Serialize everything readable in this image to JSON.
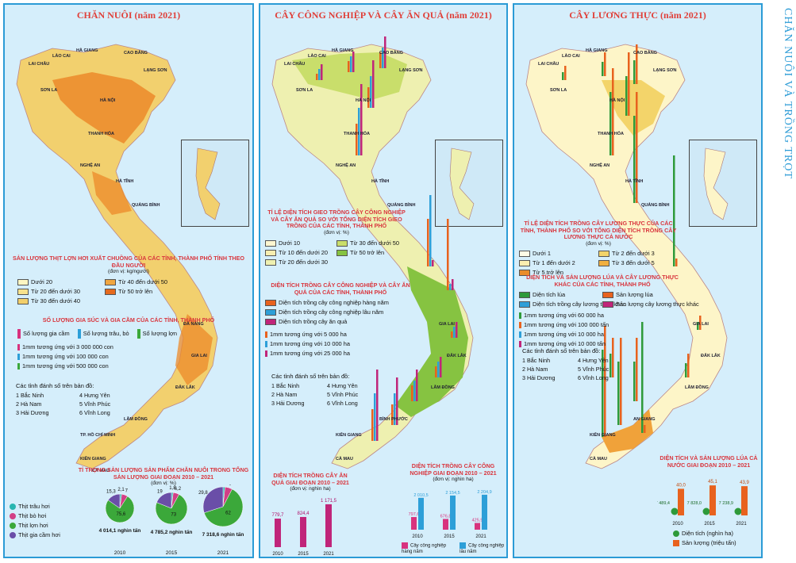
{
  "side_title": "CHĂN NUÔI VÀ TRỒNG TRỌT",
  "panels": {
    "livestock": {
      "title": "CHĂN NUÔI (năm 2021)",
      "legend1_title": "SẢN LƯỢNG THỊT LỢN HƠI XUẤT CHUỒNG CỦA CÁC TỈNH, THÀNH PHỐ TÍNH THEO ĐẦU NGƯỜI",
      "legend1_unit": "(đơn vị: kg/người)",
      "legend1_items": [
        "Dưới 20",
        "Từ 40 đến dưới 50",
        "Từ 20 đến dưới 30",
        "Từ 50 trở lên",
        "Từ 30 đến dưới 40"
      ],
      "legend2_title": "SỐ LƯỢNG GIA SÚC VÀ GIA CẦM CỦA CÁC TỈNH, THÀNH PHỐ",
      "legend2_items": [
        "Số lượng gia cầm",
        "Số lượng trâu, bò",
        "Số lượng lợn"
      ],
      "legend2_scale": [
        "1mm tương ứng với 3 000 000 con",
        "1mm tương ứng với 100 000 con",
        "1mm tương ứng với 500 000 con"
      ],
      "numbered_title": "Các tỉnh đánh số trên bản đồ:",
      "numbered": [
        "1 Bắc Ninh",
        "4 Hưng Yên",
        "2 Hà Nam",
        "5 Vĩnh Phúc",
        "3 Hải Dương",
        "6 Vĩnh Long"
      ],
      "pie_title": "TỈ TRỌNG SẢN LƯỢNG SẢN PHẨM CHĂN NUÔI TRONG TỔNG SẢN LƯỢNG GIAI ĐOẠN 2010 – 2021",
      "pie_unit": "(đơn vị: %)",
      "pie_legend": [
        "Thịt trâu hơi",
        "Thịt bò hơi",
        "Thịt lợn hơi",
        "Thịt gia cầm hơi"
      ],
      "pie_totals": [
        "4 014,1 nghìn tấn",
        "4 785,2 nghìn tấn",
        "7 318,6 nghìn tấn"
      ],
      "pie_years": [
        "2010",
        "2015",
        "2021"
      ]
    },
    "industrial": {
      "title": "CÂY CÔNG NGHIỆP VÀ CÂY ĂN QUẢ (năm 2021)",
      "legend1_title": "TỈ LỆ DIỆN TÍCH GIEO TRỒNG CÂY CÔNG NGHIỆP VÀ CÂY ĂN QUẢ SO VỚI TỔNG DIỆN TÍCH GIEO TRỒNG CỦA CÁC TỈNH, THÀNH PHỐ",
      "legend1_unit": "(đơn vị: %)",
      "legend1_items": [
        "Dưới 10",
        "Từ 30 đến dưới 50",
        "Từ 10 đến dưới 20",
        "Từ 50 trở lên",
        "Từ 20 đến dưới 30"
      ],
      "legend2_title": "DIỆN TÍCH TRỒNG CÂY CÔNG NGHIỆP VÀ CÂY ĂN QUẢ CỦA CÁC TỈNH, THÀNH PHỐ",
      "legend2_items": [
        "Diện tích trồng cây công nghiệp hàng năm",
        "Diện tích trồng cây công nghiệp lâu năm",
        "Diện tích trồng cây ăn quả"
      ],
      "legend2_scale": [
        "1mm tương ứng với 5 000 ha",
        "1mm tương ứng với 10 000 ha",
        "1mm tương ứng với 25 000 ha"
      ],
      "numbered_title": "Các tỉnh đánh số trên bản đồ:",
      "numbered": [
        "1 Bắc Ninh",
        "4 Hưng Yên",
        "2 Hà Nam",
        "5 Vĩnh Phúc",
        "3 Hải Dương",
        "6 Vĩnh Long"
      ],
      "fruit_title": "DIỆN TÍCH TRỒNG CÂY ĂN QUẢ GIAI ĐOẠN 2010 – 2021",
      "fruit_unit": "(đơn vị: nghìn ha)",
      "ind_title": "DIỆN TÍCH TRỒNG CÂY CÔNG NGHIỆP GIAI ĐOẠN 2010 – 2021",
      "ind_unit": "(đơn vị: nghìn ha)",
      "ind_legend": [
        "Cây công nghiệp hàng năm",
        "Cây công nghiệp lâu năm"
      ]
    },
    "food": {
      "title": "CÂY LƯƠNG THỰC (năm 2021)",
      "legend1_title": "TỈ LỆ DIỆN TÍCH TRỒNG CÂY LƯƠNG THỰC CỦA CÁC TỈNH, THÀNH PHỐ SO VỚI TỔNG DIỆN TÍCH TRỒNG CÂY LƯƠNG THỰC CẢ NƯỚC",
      "legend1_unit": "(đơn vị: %)",
      "legend1_items": [
        "Dưới 1",
        "Từ 2 đến dưới 3",
        "Từ 1 đến dưới 2",
        "Từ 3 đến dưới 5",
        "Từ 5 trở lên"
      ],
      "legend2_title": "DIỆN TÍCH VÀ SẢN LƯỢNG LÚA VÀ CÂY LƯƠNG THỰC KHÁC CỦA CÁC TỈNH, THÀNH PHỐ",
      "legend2_items": [
        "Diện tích lúa",
        "Sản lượng lúa",
        "Diện tích trồng cây lương thực khác",
        "Sản lượng cây lương thực khác"
      ],
      "legend2_scale": [
        "1mm tương ứng với 60 000 ha",
        "1mm tương ứng với 100 000 tấn",
        "1mm tương ứng với 10 000 ha",
        "1mm tương ứng với 10 000 tấn"
      ],
      "numbered_title": "Các tỉnh đánh số trên bản đồ:",
      "numbered": [
        "1 Bắc Ninh",
        "4 Hưng Yên",
        "2 Hà Nam",
        "5 Vĩnh Phúc",
        "3 Hải Dương",
        "6 Vĩnh Long"
      ],
      "rice_title": "DIỆN TÍCH VÀ SẢN LƯỢNG LÚA CẢ NƯỚC GIAI ĐOẠN 2010 – 2021",
      "rice_legend": [
        "Diện tích (nghìn ha)",
        "Sản lượng (triệu tấn)"
      ]
    }
  },
  "map_labels": {
    "livestock": [
      "LAI CHÂU",
      "LÀO CAI",
      "HÀ GIANG",
      "CAO BẰNG",
      "LẠNG SƠN",
      "SƠN LA",
      "HÀ NỘI",
      "THANH HÓA",
      "NGHỆ AN",
      "HÀ TĨNH",
      "QUẢNG BÌNH",
      "ĐÀ NẴNG",
      "GIA LAI",
      "ĐẮK LẮK",
      "LÂM ĐỒNG",
      "TP. HỒ CHÍ MINH",
      "KIÊN GIANG",
      "CÀ MAU"
    ],
    "industrial": [
      "LAI CHÂU",
      "LÀO CAI",
      "HÀ GIANG",
      "CAO BẰNG",
      "LẠNG SƠN",
      "SƠN LA",
      "HÀ NỘI",
      "THANH HÓA",
      "NGHỆ AN",
      "HÀ TĨNH",
      "QUẢNG BÌNH",
      "GIA LAI",
      "ĐẮK LẮK",
      "LÂM ĐỒNG",
      "BÌNH PHƯỚC",
      "KIÊN GIANG",
      "CÀ MAU"
    ],
    "food": [
      "LAI CHÂU",
      "LÀO CAI",
      "HÀ GIANG",
      "CAO BẰNG",
      "LẠNG SƠN",
      "SƠN LA",
      "HÀ NỘI",
      "THANH HÓA",
      "NGHỆ AN",
      "HÀ TĨNH",
      "QUẢNG BÌNH",
      "GIA LAI",
      "ĐẮK LẮK",
      "LÂM ĐỒNG",
      "AN GIANG",
      "KIÊN GIANG",
      "CÀ MAU"
    ]
  },
  "chart_data": [
    {
      "type": "pie",
      "title": "TỈ TRỌNG SẢN LƯỢNG SẢN PHẨM CHĂN NUÔI TRONG TỔNG SẢN LƯỢNG GIAI ĐOẠN 2010 – 2021",
      "series": [
        {
          "name": "2010",
          "values": [
            2.1,
            7.0,
            75.6,
            15.3
          ]
        },
        {
          "name": "2015",
          "values": [
            1.8,
            6.2,
            73.0,
            19.0
          ]
        },
        {
          "name": "2021",
          "values": [
            1.6,
            6.0,
            62.0,
            29.8
          ]
        }
      ],
      "labels": [
        "Thịt trâu hơi",
        "Thịt bò hơi",
        "Thịt lợn hơi",
        "Thịt gia cầm hơi"
      ],
      "colors": [
        "#28b5b0",
        "#d23f86",
        "#3ba83a",
        "#6a4ea8"
      ]
    },
    {
      "type": "bar",
      "title": "DIỆN TÍCH TRỒNG CÂY ĂN QUẢ GIAI ĐOẠN 2010 – 2021",
      "categories": [
        "2010",
        "2015",
        "2021"
      ],
      "values": [
        779.7,
        824.4,
        1171.5
      ],
      "color": "#c0257a"
    },
    {
      "type": "bar",
      "title": "DIỆN TÍCH TRỒNG CÂY CÔNG NGHIỆP GIAI ĐOẠN 2010 – 2021",
      "categories": [
        "2010",
        "2015",
        "2021"
      ],
      "series": [
        {
          "name": "Cây công nghiệp hàng năm",
          "values": [
            797.6,
            676.8,
            425.9
          ],
          "color": "#d8327e"
        },
        {
          "name": "Cây công nghiệp lâu năm",
          "values": [
            2010.5,
            2154.5,
            2204.9
          ],
          "color": "#2d9fd8"
        }
      ]
    },
    {
      "type": "bar",
      "title": "DIỆN TÍCH VÀ SẢN LƯỢNG LÚA CẢ NƯỚC GIAI ĐOẠN 2010 – 2021",
      "categories": [
        "2010",
        "2015",
        "2021"
      ],
      "series": [
        {
          "name": "Diện tích (nghìn ha)",
          "values": [
            7489.4,
            7828.0,
            7238.9
          ],
          "color": "#2e9a3a"
        },
        {
          "name": "Sản lượng (triệu tấn)",
          "values": [
            40.0,
            45.1,
            43.9
          ],
          "color": "#e8621e"
        }
      ]
    }
  ]
}
